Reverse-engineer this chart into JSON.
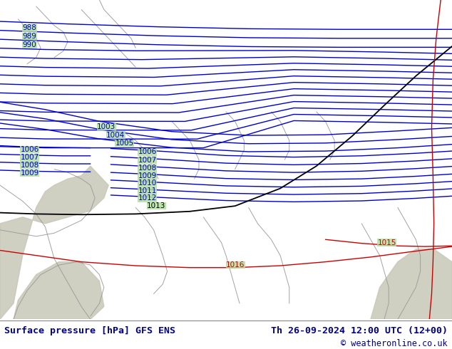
{
  "title_left": "Surface pressure [hPa] GFS ENS",
  "title_right": "Th 26-09-2024 12:00 UTC (12+00)",
  "copyright": "© weatheronline.co.uk",
  "bg_color": "#b3e0a0",
  "bottom_bg": "#ffffff",
  "title_color": "#00008b",
  "blue_isobar_color": "#0000cc",
  "black_isobar_color": "#000000",
  "red_isobar_color": "#cc0000",
  "coast_color": "#999999",
  "land_color": "#c8c8b8",
  "isobar_linewidth": 1.0,
  "label_fontsize": 7.5,
  "footer_fontsize": 9.5
}
